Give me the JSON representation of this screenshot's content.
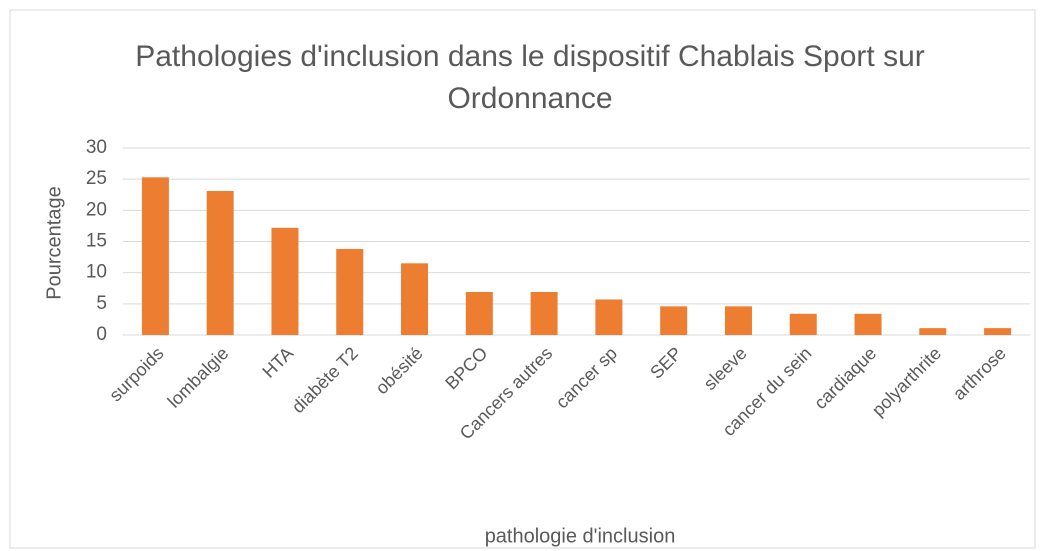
{
  "chart_data": {
    "type": "bar",
    "title": "Pathologies d'inclusion dans le dispositif Chablais Sport sur Ordonnance",
    "xlabel": "pathologie d'inclusion",
    "ylabel": "Pourcentage",
    "categories": [
      "surpoids",
      "lombalgie",
      "HTA",
      "diabète T2",
      "obésité",
      "BPCO",
      "Cancers autres",
      "cancer sp",
      "SEP",
      "sleeve",
      "cancer du sein",
      "cardiaque",
      "polyarthrite",
      "arthrose"
    ],
    "values": [
      25.3,
      23.1,
      17.2,
      13.8,
      11.5,
      6.9,
      6.9,
      5.7,
      4.6,
      4.6,
      3.4,
      3.4,
      1.1,
      1.1
    ],
    "color": "#ed7d31",
    "ylim": [
      0,
      30
    ],
    "yticks": [
      0,
      5,
      10,
      15,
      20,
      25,
      30
    ],
    "grid": true
  }
}
